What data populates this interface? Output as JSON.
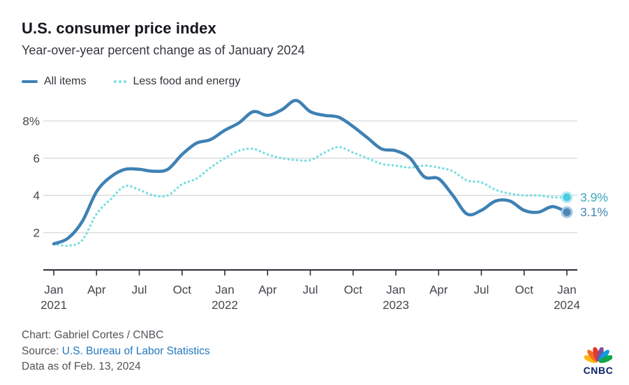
{
  "header": {
    "title": "U.S. consumer price index",
    "subtitle": "Year-over-year percent change as of January 2024"
  },
  "legend": [
    {
      "label": "All items",
      "style": "solid",
      "color": "#3e81b4"
    },
    {
      "label": "Less food and energy",
      "style": "dotted",
      "color": "#78dfde"
    }
  ],
  "chart_data": {
    "type": "line",
    "title": "U.S. consumer price index",
    "subtitle": "Year-over-year percent change as of January 2024",
    "xlabel": "",
    "ylabel": "Year-over-year percent change",
    "ylim": [
      0,
      9.6
    ],
    "grid": "horizontal",
    "legend_position": "top-left",
    "x_unit": "months since Jan 2021",
    "x_ticks": [
      {
        "m": 0,
        "label": "Jan",
        "year": "2021"
      },
      {
        "m": 3,
        "label": "Apr"
      },
      {
        "m": 6,
        "label": "Jul"
      },
      {
        "m": 9,
        "label": "Oct"
      },
      {
        "m": 12,
        "label": "Jan",
        "year": "2022"
      },
      {
        "m": 15,
        "label": "Apr"
      },
      {
        "m": 18,
        "label": "Jul"
      },
      {
        "m": 21,
        "label": "Oct"
      },
      {
        "m": 24,
        "label": "Jan",
        "year": "2023"
      },
      {
        "m": 27,
        "label": "Apr"
      },
      {
        "m": 30,
        "label": "Jul"
      },
      {
        "m": 33,
        "label": "Oct"
      },
      {
        "m": 36,
        "label": "Jan",
        "year": "2024"
      }
    ],
    "y_ticks": [
      {
        "v": 2,
        "label": "2"
      },
      {
        "v": 4,
        "label": "4"
      },
      {
        "v": 6,
        "label": "6"
      },
      {
        "v": 8,
        "label": "8%"
      }
    ],
    "series": [
      {
        "name": "Less food and energy",
        "style": "dotted",
        "color": "#78dfde",
        "marker_color": "#4dcae0",
        "halo_color": "#b7ebf3",
        "end_label": "3.9%",
        "end_label_color": "#3aa9bd",
        "values": [
          1.4,
          1.3,
          1.6,
          3.0,
          3.8,
          4.5,
          4.3,
          4.0,
          4.0,
          4.6,
          4.9,
          5.5,
          6.0,
          6.4,
          6.5,
          6.2,
          6.0,
          5.9,
          5.9,
          6.3,
          6.6,
          6.3,
          6.0,
          5.7,
          5.6,
          5.5,
          5.6,
          5.5,
          5.3,
          4.8,
          4.7,
          4.3,
          4.1,
          4.0,
          4.0,
          3.9,
          3.9
        ]
      },
      {
        "name": "All items",
        "style": "solid",
        "color": "#3e81b4",
        "marker_color": "#4c86b6",
        "halo_color": "#a5c8e1",
        "end_label": "3.1%",
        "end_label_color": "#4585b2",
        "values": [
          1.4,
          1.7,
          2.6,
          4.2,
          5.0,
          5.4,
          5.4,
          5.3,
          5.4,
          6.2,
          6.8,
          7.0,
          7.5,
          7.9,
          8.5,
          8.3,
          8.6,
          9.1,
          8.5,
          8.3,
          8.2,
          7.7,
          7.1,
          6.5,
          6.4,
          6.0,
          5.0,
          4.9,
          4.0,
          3.0,
          3.2,
          3.7,
          3.7,
          3.2,
          3.1,
          3.4,
          3.1
        ]
      }
    ],
    "colors": {
      "gridline": "#d9d9dc",
      "axis": "#2e2e36",
      "axis_label": "#44444c"
    }
  },
  "footer": {
    "credit": "Chart: Gabriel Cortes / CNBC",
    "source_prefix": "Source: ",
    "source_link": "U.S. Bureau of Labor Statistics",
    "as_of": "Data as of Feb. 13, 2024"
  },
  "logo": {
    "text": "CNBC",
    "feather_colors": [
      "#fcb711",
      "#f37021",
      "#e23a2e",
      "#7b4fa0",
      "#0c9ed9",
      "#12a64a"
    ]
  }
}
